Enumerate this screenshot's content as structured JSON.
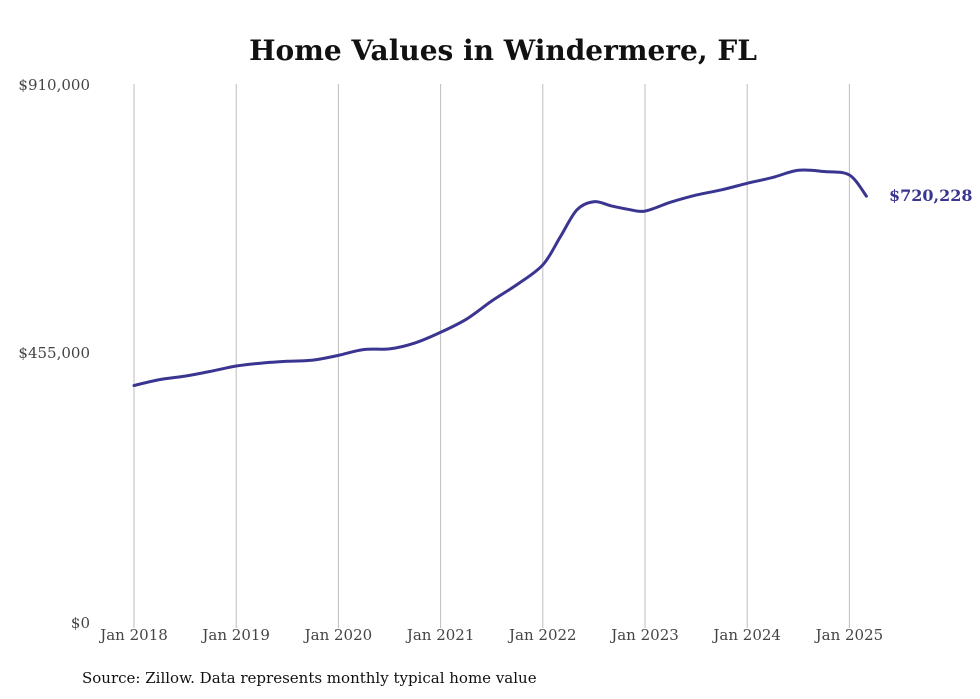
{
  "chart_data": {
    "type": "line",
    "title": "Home Values in Windermere, FL",
    "xlabel": "",
    "ylabel": "",
    "x_tick_labels": [
      "Jan 2018",
      "Jan 2019",
      "Jan 2020",
      "Jan 2021",
      "Jan 2022",
      "Jan 2023",
      "Jan 2024",
      "Jan 2025"
    ],
    "y_tick_labels": [
      "$910,000",
      "$455,000",
      "$0"
    ],
    "ylim": [
      0,
      910000
    ],
    "grid": "vertical lines at each January",
    "line_color": "#3a3591",
    "series": [
      {
        "x": [
          "2018-01",
          "2018-04",
          "2018-07",
          "2018-10",
          "2019-01",
          "2019-04",
          "2019-07",
          "2019-10",
          "2020-01",
          "2020-04",
          "2020-07",
          "2020-10",
          "2021-01",
          "2021-04",
          "2021-07",
          "2021-10",
          "2022-01",
          "2022-03",
          "2022-05",
          "2022-07",
          "2022-09",
          "2022-11",
          "2023-01",
          "2023-04",
          "2023-07",
          "2023-10",
          "2024-01",
          "2024-04",
          "2024-07",
          "2024-10",
          "2025-01",
          "2025-03"
        ],
        "values": [
          400000,
          410000,
          416000,
          424000,
          433000,
          438000,
          441000,
          443000,
          451000,
          461000,
          462000,
          472000,
          490000,
          512000,
          543000,
          571000,
          604000,
          650000,
          697000,
          711000,
          704000,
          698000,
          695000,
          710000,
          722000,
          731000,
          742000,
          752000,
          764000,
          762000,
          756000,
          720228
        ]
      }
    ],
    "end_label": "$720,228",
    "source": "Source: Zillow. Data represents monthly typical home value"
  }
}
